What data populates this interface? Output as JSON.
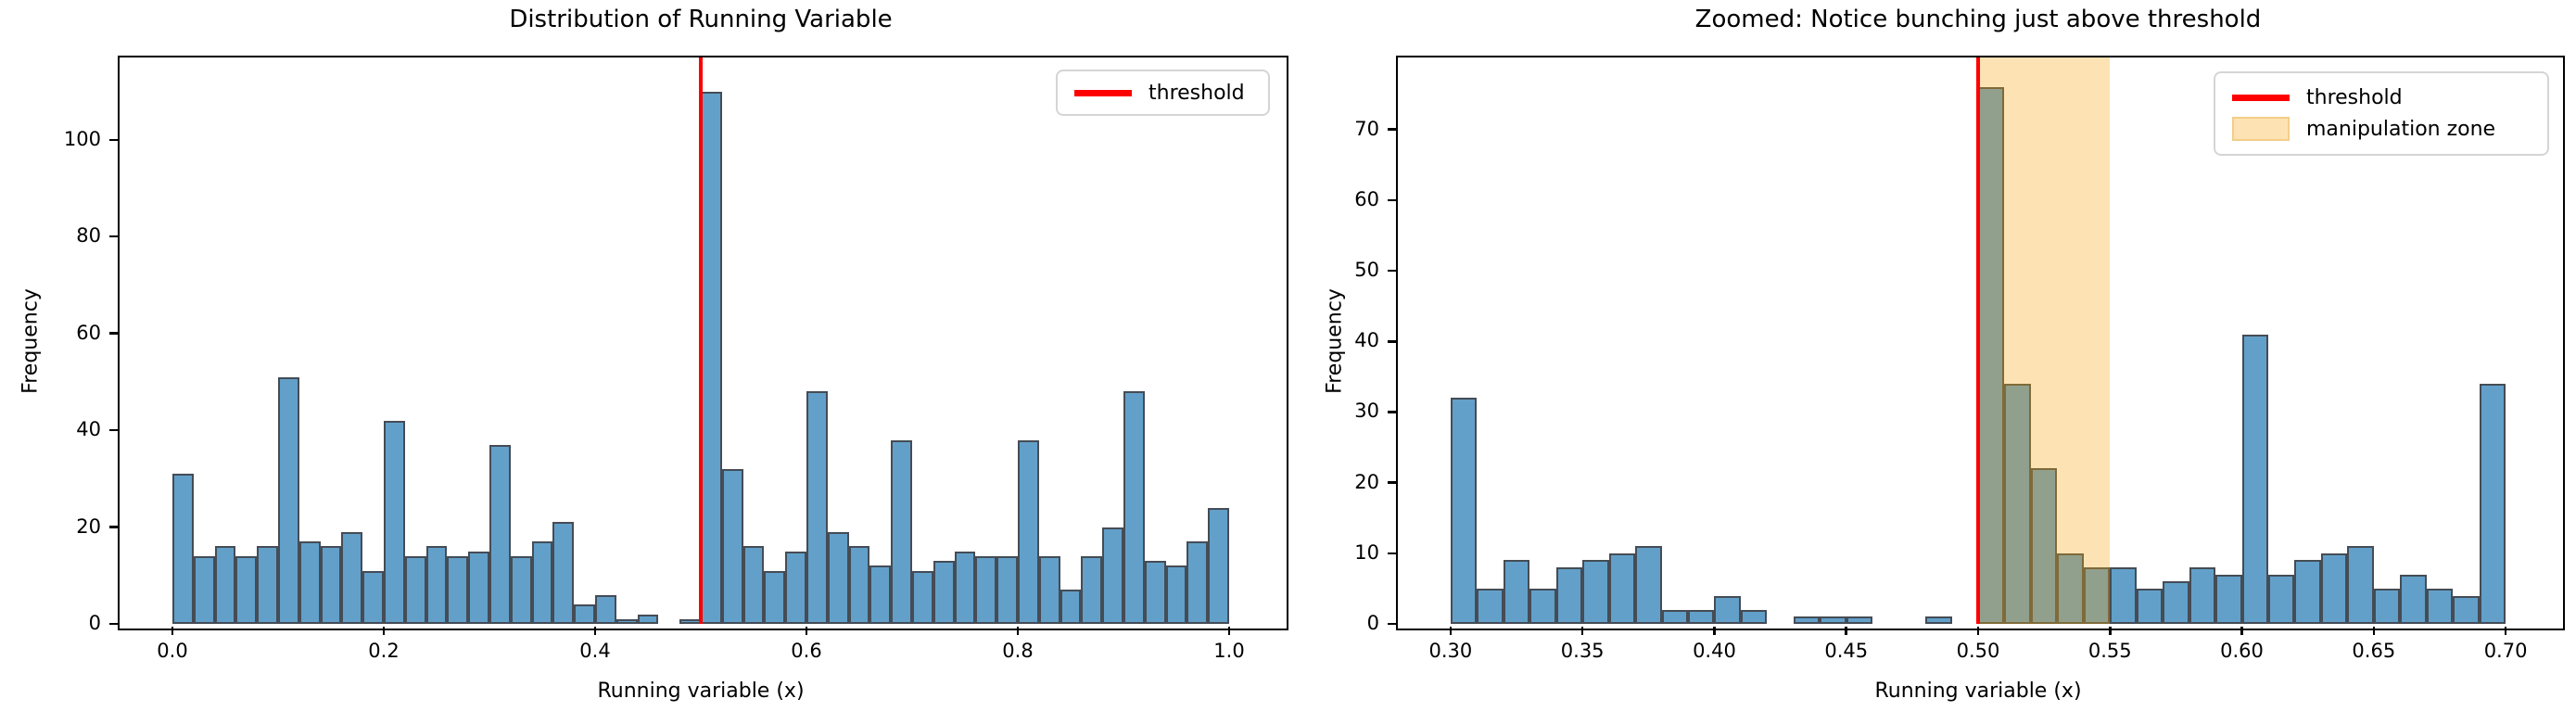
{
  "colors": {
    "bar_fill": "#62a0ca",
    "bar_edge": "#454c55",
    "bar_fill_in_zone": "#91a08d",
    "bar_edge_in_zone": "#7f6a38",
    "zone_fill": "#fde3b4",
    "threshold_red": "#ff0000",
    "legend_border": "#d5d5d5"
  },
  "chart_data": [
    {
      "type": "bar",
      "subtype": "histogram",
      "title": "Distribution of Running Variable",
      "xlabel": "Running variable (x)",
      "ylabel": "Frequency",
      "bin_start": 0.0,
      "bin_width": 0.02,
      "values": [
        31,
        14,
        16,
        14,
        16,
        51,
        17,
        16,
        19,
        11,
        42,
        14,
        16,
        14,
        15,
        37,
        14,
        17,
        21,
        4,
        6,
        1,
        2,
        0,
        1,
        110,
        32,
        16,
        11,
        15,
        48,
        19,
        16,
        12,
        38,
        11,
        13,
        15,
        14,
        14,
        38,
        14,
        7,
        14,
        20,
        48,
        13,
        12,
        17,
        24
      ],
      "xlim": [
        -0.05,
        1.05
      ],
      "ylim": [
        0,
        117
      ],
      "grid": false,
      "xticks": [
        0.0,
        0.2,
        0.4,
        0.6,
        0.8,
        1.0
      ],
      "xtick_labels": [
        "0.0",
        "0.2",
        "0.4",
        "0.6",
        "0.8",
        "1.0"
      ],
      "yticks": [
        0,
        20,
        40,
        60,
        80,
        100
      ],
      "ytick_labels": [
        "0",
        "20",
        "40",
        "60",
        "80",
        "100"
      ],
      "threshold_x": 0.5,
      "legend_position": "upper right",
      "legend": [
        {
          "label": "threshold",
          "swatch": "line",
          "color": "#ff0000"
        }
      ]
    },
    {
      "type": "bar",
      "subtype": "histogram",
      "title": "Zoomed: Notice bunching just above threshold",
      "xlabel": "Running variable (x)",
      "ylabel": "Frequency",
      "bin_start": 0.3,
      "bin_width": 0.01,
      "values": [
        32,
        5,
        9,
        5,
        8,
        9,
        10,
        11,
        2,
        2,
        4,
        2,
        0,
        1,
        1,
        1,
        0,
        0,
        1,
        0,
        76,
        34,
        22,
        10,
        8,
        8,
        5,
        6,
        8,
        7,
        41,
        7,
        9,
        10,
        11,
        5,
        7,
        5,
        4,
        34
      ],
      "xlim": [
        0.28,
        0.72
      ],
      "ylim": [
        0,
        80.2
      ],
      "grid": false,
      "xticks": [
        0.3,
        0.35,
        0.4,
        0.45,
        0.5,
        0.55,
        0.6,
        0.65,
        0.7
      ],
      "xtick_labels": [
        "0.30",
        "0.35",
        "0.40",
        "0.45",
        "0.50",
        "0.55",
        "0.60",
        "0.65",
        "0.70"
      ],
      "yticks": [
        0,
        10,
        20,
        30,
        40,
        50,
        60,
        70
      ],
      "ytick_labels": [
        "0",
        "10",
        "20",
        "30",
        "40",
        "50",
        "60",
        "70"
      ],
      "threshold_x": 0.5,
      "manipulation_zone": [
        0.5,
        0.55
      ],
      "legend_position": "upper right",
      "legend": [
        {
          "label": "threshold",
          "swatch": "line",
          "color": "#ff0000"
        },
        {
          "label": "manipulation zone",
          "swatch": "patch",
          "color": "#fde3b4"
        }
      ]
    }
  ]
}
